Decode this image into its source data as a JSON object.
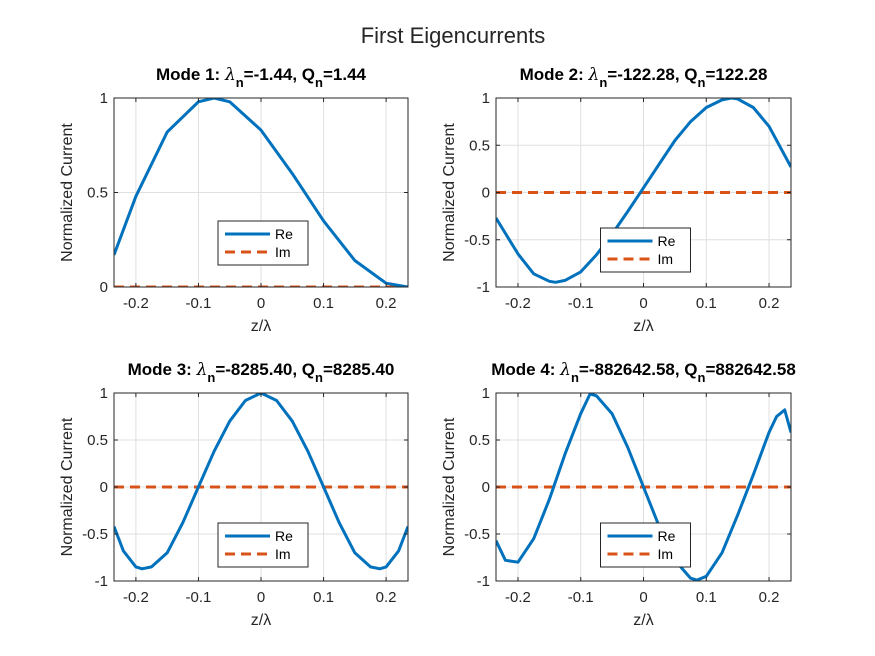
{
  "figure": {
    "title": "First Eigencurrents"
  },
  "colors": {
    "re": "#0072BD",
    "im": "#D95319",
    "grid": "#dfdfdf",
    "axis": "#262626"
  },
  "chart_data": [
    {
      "type": "line",
      "title_parts": [
        "Mode 1: ",
        "λ",
        "n",
        "=-1.44, Q",
        "n",
        "=1.44"
      ],
      "xlabel": "z/λ",
      "ylabel": "Normalized Current",
      "xlim": [
        -0.235,
        0.235
      ],
      "ylim": [
        0,
        1
      ],
      "xticks": [
        -0.2,
        -0.1,
        0,
        0.1,
        0.2
      ],
      "xtick_labels": [
        "-0.2",
        "-0.1",
        "0",
        "0.1",
        "0.2"
      ],
      "yticks": [
        0,
        0.5,
        1
      ],
      "ytick_labels": [
        "0",
        "0.5",
        "1"
      ],
      "grid": true,
      "legend": {
        "placement": "lower-center",
        "entries": [
          "Re",
          "Im"
        ]
      },
      "series": [
        {
          "name": "Re",
          "x": [
            -0.235,
            -0.2,
            -0.15,
            -0.1,
            -0.075,
            -0.05,
            0,
            0.05,
            0.1,
            0.15,
            0.2,
            0.235
          ],
          "values": [
            0.17,
            0.48,
            0.82,
            0.98,
            1.0,
            0.98,
            0.83,
            0.6,
            0.35,
            0.14,
            0.02,
            0.0
          ]
        },
        {
          "name": "Im",
          "x": [
            -0.235,
            0.235
          ],
          "values": [
            0,
            0
          ]
        }
      ]
    },
    {
      "type": "line",
      "title_parts": [
        "Mode 2: ",
        "λ",
        "n",
        "=-122.28, Q",
        "n",
        "=122.28"
      ],
      "xlabel": "z/λ",
      "ylabel": "Normalized Current",
      "xlim": [
        -0.235,
        0.235
      ],
      "ylim": [
        -1,
        1
      ],
      "xticks": [
        -0.2,
        -0.1,
        0,
        0.1,
        0.2
      ],
      "xtick_labels": [
        "-0.2",
        "-0.1",
        "0",
        "0.1",
        "0.2"
      ],
      "yticks": [
        -1,
        -0.5,
        0,
        0.5,
        1
      ],
      "ytick_labels": [
        "-1",
        "-0.5",
        "0",
        "0.5",
        "1"
      ],
      "grid": true,
      "legend": {
        "placement": "lower-center",
        "entries": [
          "Re",
          "Im"
        ]
      },
      "series": [
        {
          "name": "Re",
          "x": [
            -0.235,
            -0.2,
            -0.175,
            -0.15,
            -0.14,
            -0.125,
            -0.1,
            -0.075,
            -0.05,
            -0.025,
            0,
            0.025,
            0.05,
            0.075,
            0.1,
            0.125,
            0.14,
            0.15,
            0.175,
            0.2,
            0.235
          ],
          "values": [
            -0.27,
            -0.65,
            -0.86,
            -0.94,
            -0.95,
            -0.93,
            -0.84,
            -0.66,
            -0.44,
            -0.2,
            0.05,
            0.3,
            0.55,
            0.75,
            0.9,
            0.98,
            1.0,
            0.99,
            0.9,
            0.7,
            0.27
          ]
        },
        {
          "name": "Im",
          "x": [
            -0.235,
            0.235
          ],
          "values": [
            0,
            0
          ]
        }
      ]
    },
    {
      "type": "line",
      "title_parts": [
        "Mode 3: ",
        "λ",
        "n",
        "=-8285.40, Q",
        "n",
        "=8285.40"
      ],
      "xlabel": "z/λ",
      "ylabel": "Normalized Current",
      "xlim": [
        -0.235,
        0.235
      ],
      "ylim": [
        -1,
        1
      ],
      "xticks": [
        -0.2,
        -0.1,
        0,
        0.1,
        0.2
      ],
      "xtick_labels": [
        "-0.2",
        "-0.1",
        "0",
        "0.1",
        "0.2"
      ],
      "yticks": [
        -1,
        -0.5,
        0,
        0.5,
        1
      ],
      "ytick_labels": [
        "-1",
        "-0.5",
        "0",
        "0.5",
        "1"
      ],
      "grid": true,
      "legend": {
        "placement": "lower-center",
        "entries": [
          "Re",
          "Im"
        ]
      },
      "series": [
        {
          "name": "Re",
          "x": [
            -0.235,
            -0.22,
            -0.2,
            -0.19,
            -0.175,
            -0.15,
            -0.125,
            -0.1,
            -0.075,
            -0.05,
            -0.025,
            0,
            0.025,
            0.05,
            0.075,
            0.1,
            0.125,
            0.15,
            0.175,
            0.19,
            0.2,
            0.22,
            0.235
          ],
          "values": [
            -0.42,
            -0.68,
            -0.85,
            -0.87,
            -0.85,
            -0.7,
            -0.38,
            0.0,
            0.38,
            0.7,
            0.92,
            1.0,
            0.92,
            0.7,
            0.38,
            0.0,
            -0.38,
            -0.7,
            -0.85,
            -0.87,
            -0.85,
            -0.68,
            -0.42
          ]
        },
        {
          "name": "Im",
          "x": [
            -0.235,
            0.235
          ],
          "values": [
            0,
            0
          ]
        }
      ]
    },
    {
      "type": "line",
      "title_parts": [
        "Mode 4: ",
        "λ",
        "n",
        "=-882642.58, Q",
        "n",
        "=882642.58"
      ],
      "xlabel": "z/λ",
      "ylabel": "Normalized Current",
      "xlim": [
        -0.235,
        0.235
      ],
      "ylim": [
        -1,
        1
      ],
      "xticks": [
        -0.2,
        -0.1,
        0,
        0.1,
        0.2
      ],
      "xtick_labels": [
        "-0.2",
        "-0.1",
        "0",
        "0.1",
        "0.2"
      ],
      "yticks": [
        -1,
        -0.5,
        0,
        0.5,
        1
      ],
      "ytick_labels": [
        "-1",
        "-0.5",
        "0",
        "0.5",
        "1"
      ],
      "grid": true,
      "legend": {
        "placement": "lower-center",
        "entries": [
          "Re",
          "Im"
        ]
      },
      "series": [
        {
          "name": "Re",
          "x": [
            -0.235,
            -0.22,
            -0.2,
            -0.175,
            -0.15,
            -0.125,
            -0.1,
            -0.085,
            -0.075,
            -0.05,
            -0.025,
            0,
            0.025,
            0.05,
            0.075,
            0.085,
            0.1,
            0.125,
            0.15,
            0.175,
            0.2,
            0.212,
            0.225,
            0.235
          ],
          "values": [
            -0.57,
            -0.78,
            -0.8,
            -0.55,
            -0.13,
            0.35,
            0.78,
            0.99,
            0.97,
            0.78,
            0.42,
            0.0,
            -0.42,
            -0.78,
            -0.97,
            -0.99,
            -0.95,
            -0.7,
            -0.3,
            0.13,
            0.58,
            0.75,
            0.82,
            0.58
          ]
        },
        {
          "name": "Im",
          "x": [
            -0.235,
            0.235
          ],
          "values": [
            0,
            0
          ]
        }
      ]
    }
  ]
}
